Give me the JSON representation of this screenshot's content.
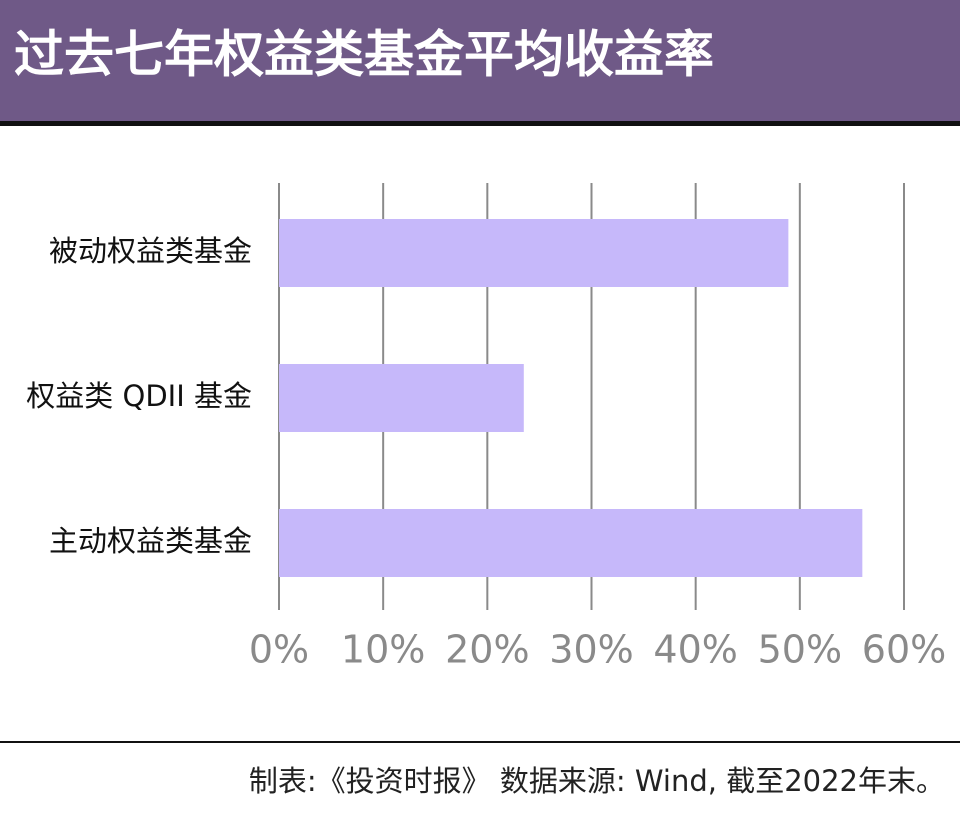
{
  "chart_data": {
    "type": "bar",
    "orientation": "horizontal",
    "title": "过去七年权益类基金平均收益率",
    "categories": [
      "被动权益类基金",
      "权益类 QDII 基金",
      "主动权益类基金"
    ],
    "values": [
      48.9,
      23.5,
      56.0
    ],
    "color": "#c6b8fa",
    "xlim": [
      0,
      60
    ],
    "xticks": [
      {
        "value": 0,
        "label": "0%"
      },
      {
        "value": 10,
        "label": "10%"
      },
      {
        "value": 20,
        "label": "20%"
      },
      {
        "value": 30,
        "label": "30%"
      },
      {
        "value": 40,
        "label": "40%"
      },
      {
        "value": 50,
        "label": "50%"
      },
      {
        "value": 60,
        "label": "60%"
      }
    ],
    "grid": true,
    "note": "制表:《投资时报》 数据来源: Wind, 截至2022年末。"
  }
}
